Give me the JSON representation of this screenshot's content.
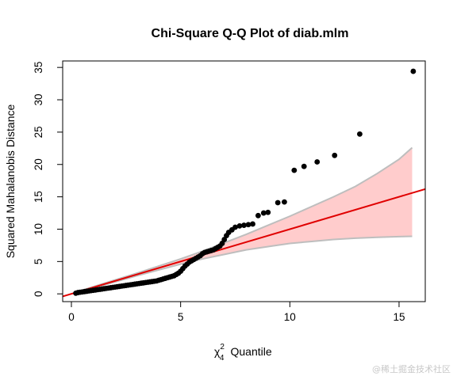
{
  "chart_data": {
    "type": "scatter",
    "title": "Chi-Square Q-Q Plot of diab.mlm",
    "xlabel_symbol": "χ",
    "xlabel_sup": "2",
    "xlabel_sub": "4",
    "xlabel_text": "Quantile",
    "ylabel": "Squared Mahalanobis Distance",
    "xlim": [
      -0.4,
      16.2
    ],
    "ylim": [
      -1.2,
      36.0
    ],
    "x_ticks": [
      0,
      5,
      10,
      15
    ],
    "y_ticks": [
      0,
      5,
      10,
      15,
      20,
      25,
      30,
      35
    ],
    "colors": {
      "points": "#000000",
      "reference_line": "#e00000",
      "envelope_fill": "#ffcccc",
      "envelope_edge": "#bebebe"
    },
    "reference_line": {
      "intercept": 0,
      "slope": 1.0
    },
    "envelope": {
      "x": [
        0.1,
        1,
        2,
        3,
        4,
        5,
        6,
        7,
        8,
        9,
        10,
        11,
        12,
        13,
        14,
        15,
        15.6
      ],
      "lower": [
        0.05,
        0.9,
        1.85,
        2.8,
        3.7,
        4.6,
        5.4,
        6.1,
        6.8,
        7.3,
        7.8,
        8.1,
        8.4,
        8.6,
        8.75,
        8.85,
        8.9
      ],
      "upper": [
        0.15,
        1.1,
        2.15,
        3.2,
        4.3,
        5.4,
        6.6,
        7.9,
        9.2,
        10.6,
        12.0,
        13.5,
        15.0,
        16.6,
        18.6,
        20.8,
        22.6
      ]
    },
    "points": [
      {
        "x": 0.2,
        "y": 0.1
      },
      {
        "x": 0.3,
        "y": 0.2
      },
      {
        "x": 0.4,
        "y": 0.25
      },
      {
        "x": 0.5,
        "y": 0.3
      },
      {
        "x": 0.6,
        "y": 0.35
      },
      {
        "x": 0.7,
        "y": 0.4
      },
      {
        "x": 0.8,
        "y": 0.45
      },
      {
        "x": 0.9,
        "y": 0.5
      },
      {
        "x": 1.0,
        "y": 0.55
      },
      {
        "x": 1.1,
        "y": 0.6
      },
      {
        "x": 1.2,
        "y": 0.65
      },
      {
        "x": 1.3,
        "y": 0.7
      },
      {
        "x": 1.4,
        "y": 0.75
      },
      {
        "x": 1.5,
        "y": 0.8
      },
      {
        "x": 1.6,
        "y": 0.85
      },
      {
        "x": 1.7,
        "y": 0.9
      },
      {
        "x": 1.8,
        "y": 0.95
      },
      {
        "x": 1.9,
        "y": 1.0
      },
      {
        "x": 2.0,
        "y": 1.05
      },
      {
        "x": 2.1,
        "y": 1.1
      },
      {
        "x": 2.2,
        "y": 1.15
      },
      {
        "x": 2.3,
        "y": 1.2
      },
      {
        "x": 2.4,
        "y": 1.25
      },
      {
        "x": 2.5,
        "y": 1.3
      },
      {
        "x": 2.6,
        "y": 1.35
      },
      {
        "x": 2.7,
        "y": 1.4
      },
      {
        "x": 2.8,
        "y": 1.45
      },
      {
        "x": 2.9,
        "y": 1.5
      },
      {
        "x": 3.0,
        "y": 1.55
      },
      {
        "x": 3.1,
        "y": 1.6
      },
      {
        "x": 3.2,
        "y": 1.65
      },
      {
        "x": 3.3,
        "y": 1.7
      },
      {
        "x": 3.4,
        "y": 1.75
      },
      {
        "x": 3.5,
        "y": 1.8
      },
      {
        "x": 3.6,
        "y": 1.85
      },
      {
        "x": 3.7,
        "y": 1.9
      },
      {
        "x": 3.8,
        "y": 1.95
      },
      {
        "x": 3.9,
        "y": 2.0
      },
      {
        "x": 4.0,
        "y": 2.1
      },
      {
        "x": 4.1,
        "y": 2.2
      },
      {
        "x": 4.2,
        "y": 2.3
      },
      {
        "x": 4.3,
        "y": 2.4
      },
      {
        "x": 4.4,
        "y": 2.5
      },
      {
        "x": 4.5,
        "y": 2.6
      },
      {
        "x": 4.6,
        "y": 2.7
      },
      {
        "x": 4.7,
        "y": 2.8
      },
      {
        "x": 4.8,
        "y": 3.0
      },
      {
        "x": 4.9,
        "y": 3.2
      },
      {
        "x": 5.0,
        "y": 3.5
      },
      {
        "x": 5.1,
        "y": 3.9
      },
      {
        "x": 5.2,
        "y": 4.3
      },
      {
        "x": 5.3,
        "y": 4.6
      },
      {
        "x": 5.4,
        "y": 4.9
      },
      {
        "x": 5.5,
        "y": 5.1
      },
      {
        "x": 5.6,
        "y": 5.3
      },
      {
        "x": 5.7,
        "y": 5.5
      },
      {
        "x": 5.8,
        "y": 5.7
      },
      {
        "x": 5.9,
        "y": 5.9
      },
      {
        "x": 6.0,
        "y": 6.2
      },
      {
        "x": 6.1,
        "y": 6.4
      },
      {
        "x": 6.2,
        "y": 6.5
      },
      {
        "x": 6.3,
        "y": 6.6
      },
      {
        "x": 6.4,
        "y": 6.7
      },
      {
        "x": 6.5,
        "y": 6.8
      },
      {
        "x": 6.6,
        "y": 7.0
      },
      {
        "x": 6.7,
        "y": 7.2
      },
      {
        "x": 6.8,
        "y": 7.4
      },
      {
        "x": 6.9,
        "y": 7.8
      },
      {
        "x": 7.0,
        "y": 8.4
      },
      {
        "x": 7.1,
        "y": 9.0
      },
      {
        "x": 7.2,
        "y": 9.5
      },
      {
        "x": 7.35,
        "y": 9.9
      },
      {
        "x": 7.5,
        "y": 10.3
      },
      {
        "x": 7.7,
        "y": 10.5
      },
      {
        "x": 7.9,
        "y": 10.6
      },
      {
        "x": 8.1,
        "y": 10.7
      },
      {
        "x": 8.3,
        "y": 10.8
      },
      {
        "x": 8.55,
        "y": 12.1
      },
      {
        "x": 8.8,
        "y": 12.5
      },
      {
        "x": 9.0,
        "y": 12.6
      },
      {
        "x": 9.45,
        "y": 14.1
      },
      {
        "x": 9.75,
        "y": 14.2
      },
      {
        "x": 10.2,
        "y": 19.1
      },
      {
        "x": 10.65,
        "y": 19.7
      },
      {
        "x": 11.25,
        "y": 20.4
      },
      {
        "x": 12.05,
        "y": 21.4
      },
      {
        "x": 13.2,
        "y": 24.7
      },
      {
        "x": 15.65,
        "y": 34.4
      }
    ]
  },
  "watermark": "@稀土掘金技术社区"
}
